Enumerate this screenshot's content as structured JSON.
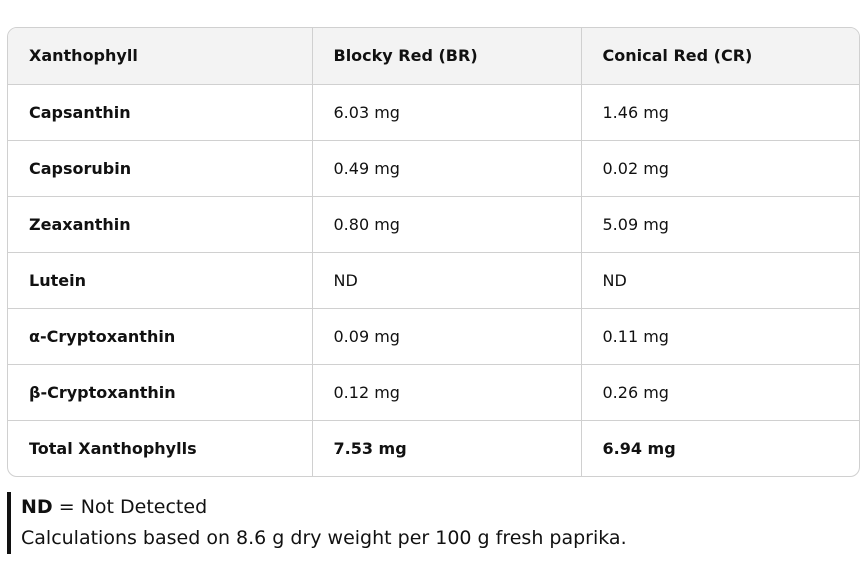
{
  "table": {
    "header": [
      "Xanthophyll",
      "Blocky Red (BR)",
      "Conical Red (CR)"
    ],
    "rows": [
      [
        "Capsanthin",
        "6.03 mg",
        "1.46 mg"
      ],
      [
        "Capsorubin",
        "0.49 mg",
        "0.02 mg"
      ],
      [
        "Zeaxanthin",
        "0.80 mg",
        "5.09 mg"
      ],
      [
        "Lutein",
        "ND",
        "ND"
      ],
      [
        "α-Cryptoxanthin",
        "0.09 mg",
        "0.11 mg"
      ],
      [
        "β-Cryptoxanthin",
        "0.12 mg",
        "0.26 mg"
      ]
    ],
    "total": [
      "Total Xanthophylls",
      "7.53 mg",
      "6.94 mg"
    ]
  },
  "note": {
    "term": "ND",
    "definition": "= Not Detected",
    "text": "Calculations based on 8.6 g dry weight per 100 g fresh paprika."
  }
}
